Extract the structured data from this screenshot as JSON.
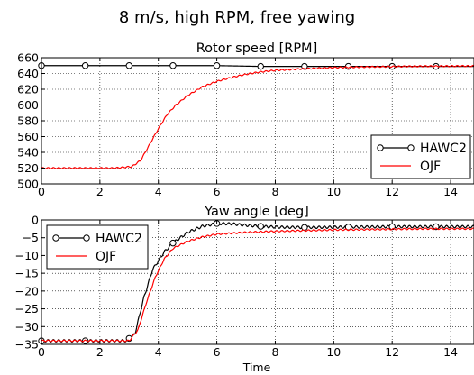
{
  "chart_data": {
    "type": "line",
    "suptitle": "8 m/s, high RPM, free yawing",
    "xlabel": "Time",
    "colors": {
      "HAWC2": "#000000",
      "OJF": "#ff0000",
      "grid": "#000000"
    },
    "panels": [
      {
        "title": "Rotor speed [RPM]",
        "xlim": [
          0,
          14.8
        ],
        "ylim": [
          500,
          660
        ],
        "xticks": [
          0,
          2,
          4,
          6,
          8,
          10,
          12,
          14
        ],
        "yticks": [
          500,
          520,
          540,
          560,
          580,
          600,
          620,
          640,
          660
        ],
        "legend": {
          "placement": "lower-right",
          "entries": [
            "HAWC2",
            "OJF"
          ]
        },
        "series": [
          {
            "name": "HAWC2",
            "style": "line-circle-markers",
            "marker_x": [
              0,
              1.5,
              3,
              4.5,
              6,
              7.5,
              9,
              10.5,
              12,
              13.5
            ],
            "points": [
              [
                0,
                650
              ],
              [
                3,
                650
              ],
              [
                4.5,
                650
              ],
              [
                6,
                650
              ],
              [
                7.5,
                649
              ],
              [
                9,
                649
              ],
              [
                10.5,
                649
              ],
              [
                12,
                649
              ],
              [
                13.5,
                649
              ],
              [
                14.8,
                649
              ]
            ]
          },
          {
            "name": "OJF",
            "style": "line",
            "oscillation": 0.8,
            "points": [
              [
                0,
                520
              ],
              [
                2.5,
                520
              ],
              [
                3.1,
                522
              ],
              [
                3.4,
                530
              ],
              [
                3.7,
                550
              ],
              [
                4.0,
                570
              ],
              [
                4.3,
                588
              ],
              [
                4.6,
                600
              ],
              [
                5.0,
                612
              ],
              [
                5.5,
                623
              ],
              [
                6.0,
                630
              ],
              [
                6.5,
                635
              ],
              [
                7.0,
                639
              ],
              [
                7.5,
                642
              ],
              [
                8.0,
                644
              ],
              [
                9.0,
                646
              ],
              [
                10.0,
                647.5
              ],
              [
                11.0,
                648.3
              ],
              [
                12.0,
                648.8
              ],
              [
                13.0,
                649.2
              ],
              [
                14.8,
                649.5
              ]
            ]
          }
        ]
      },
      {
        "title": "Yaw angle [deg]",
        "xlim": [
          0,
          14.8
        ],
        "ylim": [
          -35,
          0
        ],
        "xticks": [
          0,
          2,
          4,
          6,
          8,
          10,
          12,
          14
        ],
        "yticks": [
          0,
          -5,
          -10,
          -15,
          -20,
          -25,
          -30,
          -35
        ],
        "legend": {
          "placement": "upper-left",
          "entries": [
            "HAWC2",
            "OJF"
          ]
        },
        "series": [
          {
            "name": "HAWC2",
            "style": "line-circle-markers",
            "oscillation": 0.35,
            "marker_x": [
              0,
              1.5,
              3,
              4.5,
              6,
              7.5,
              9,
              10.5,
              12,
              13.5
            ],
            "points": [
              [
                0,
                -34
              ],
              [
                2.9,
                -34
              ],
              [
                3.2,
                -32
              ],
              [
                3.5,
                -22
              ],
              [
                3.8,
                -14
              ],
              [
                4.2,
                -9
              ],
              [
                4.5,
                -6.5
              ],
              [
                5.0,
                -3.5
              ],
              [
                5.5,
                -1.8
              ],
              [
                6.0,
                -1
              ],
              [
                6.5,
                -1.1
              ],
              [
                7.0,
                -1.5
              ],
              [
                7.5,
                -1.8
              ],
              [
                8.0,
                -2
              ],
              [
                9.0,
                -2.1
              ],
              [
                10.5,
                -2
              ],
              [
                12.0,
                -1.9
              ],
              [
                13.5,
                -1.9
              ],
              [
                14.8,
                -1.9
              ]
            ]
          },
          {
            "name": "OJF",
            "style": "line",
            "oscillation": 0.2,
            "points": [
              [
                0,
                -34
              ],
              [
                3.0,
                -34
              ],
              [
                3.3,
                -31
              ],
              [
                3.6,
                -23
              ],
              [
                3.9,
                -16
              ],
              [
                4.2,
                -11
              ],
              [
                4.5,
                -8
              ],
              [
                5.0,
                -6
              ],
              [
                5.5,
                -4.8
              ],
              [
                6.0,
                -4
              ],
              [
                7.0,
                -3.5
              ],
              [
                8.0,
                -3.2
              ],
              [
                9.0,
                -3.0
              ],
              [
                10.0,
                -2.8
              ],
              [
                11.0,
                -2.7
              ],
              [
                12.0,
                -2.6
              ],
              [
                13.0,
                -2.5
              ],
              [
                14.8,
                -2.5
              ]
            ]
          }
        ]
      }
    ]
  }
}
